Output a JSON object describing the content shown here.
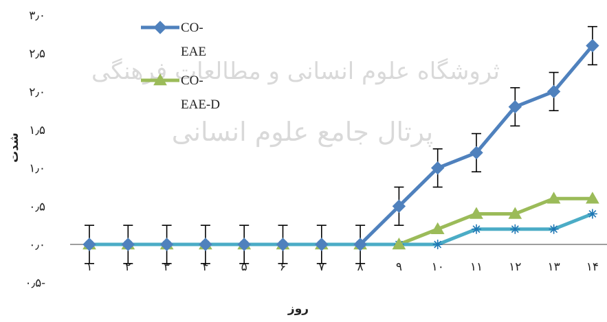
{
  "chart_data": {
    "type": "line",
    "xlabel": "روز",
    "ylabel": "شدت",
    "categories": [
      "۱",
      "۲",
      "۳",
      "۴",
      "۵",
      "۶",
      "۷",
      "۸",
      "۹",
      "۱۰",
      "۱۱",
      "۱۲",
      "۱۳",
      "۱۴"
    ],
    "y_ticks": [
      "۳٫۰",
      "۲٫۵",
      "۲٫۰",
      "۱٫۵",
      "۱٫۰",
      "۰٫۵",
      "۰٫۰",
      "۰٫۵-"
    ],
    "ylim": [
      -0.5,
      3.0
    ],
    "grid": false,
    "legend_position": "top-left",
    "series": [
      {
        "name": "CO-EAE",
        "legend_lines": [
          "CO-",
          "EAE"
        ],
        "color": "#4f81bd",
        "marker": "diamond",
        "values": [
          0,
          0,
          0,
          0,
          0,
          0,
          0,
          0,
          0.5,
          1.0,
          1.2,
          1.8,
          2.0,
          2.6
        ],
        "error": [
          0.25,
          0.25,
          0.25,
          0.25,
          0.25,
          0.25,
          0.25,
          0.25,
          0.25,
          0.25,
          0.25,
          0.25,
          0.25,
          0.25
        ]
      },
      {
        "name": "CO-EAE-D",
        "legend_lines": [
          "CO-",
          "EAE-D"
        ],
        "color": "#9bbb59",
        "marker": "triangle",
        "values": [
          0,
          0,
          0,
          0,
          0,
          0,
          0,
          0,
          0,
          0.2,
          0.4,
          0.4,
          0.6,
          0.6
        ]
      },
      {
        "color": "#4bacc6",
        "marker": "star",
        "values": [
          0,
          0,
          0,
          0,
          0,
          0,
          0,
          0,
          0,
          0,
          0.2,
          0.2,
          0.2,
          0.4
        ]
      }
    ],
    "watermark": {
      "line1": "ثروشگاه علوم انسانی و مطالعات فرهنگی",
      "line2": "پرتال جامع علوم انسانی"
    }
  }
}
